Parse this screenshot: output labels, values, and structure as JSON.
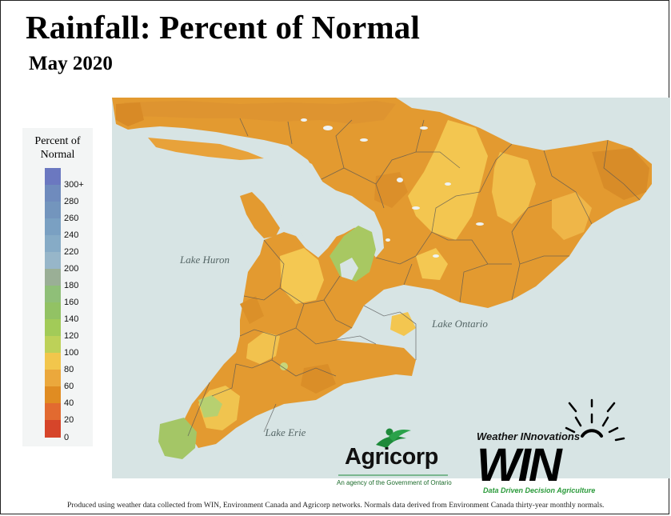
{
  "title": "Rainfall: Percent of Normal",
  "subtitle": "May 2020",
  "legend": {
    "title": "Percent of Normal",
    "labels": [
      "300+",
      "280",
      "260",
      "240",
      "220",
      "200",
      "180",
      "160",
      "140",
      "120",
      "100",
      "80",
      "60",
      "40",
      "20",
      "0"
    ]
  },
  "lakes": {
    "huron": "Lake Huron",
    "ontario": "Lake Ontario",
    "erie": "Lake Erie"
  },
  "logos": {
    "agricorp_name": "Agricorp",
    "agricorp_tagline": "An agency of the Government of Ontario",
    "win_brand": "Weather INnovations",
    "win_word": "WIN",
    "win_tagline": "Data Driven Decision Agriculture"
  },
  "footer": "Produced using weather data collected from WIN, Environment Canada and Agricorp networks. Normals data derived from Environment Canada thirty-year monthly normals.",
  "colors": {
    "dry_orange": "#e0922c",
    "mid_orange": "#eeaa3c",
    "near_normal_yellow": "#f5cd55",
    "normal_green": "#a9c864",
    "water": "#d7e4e4"
  }
}
